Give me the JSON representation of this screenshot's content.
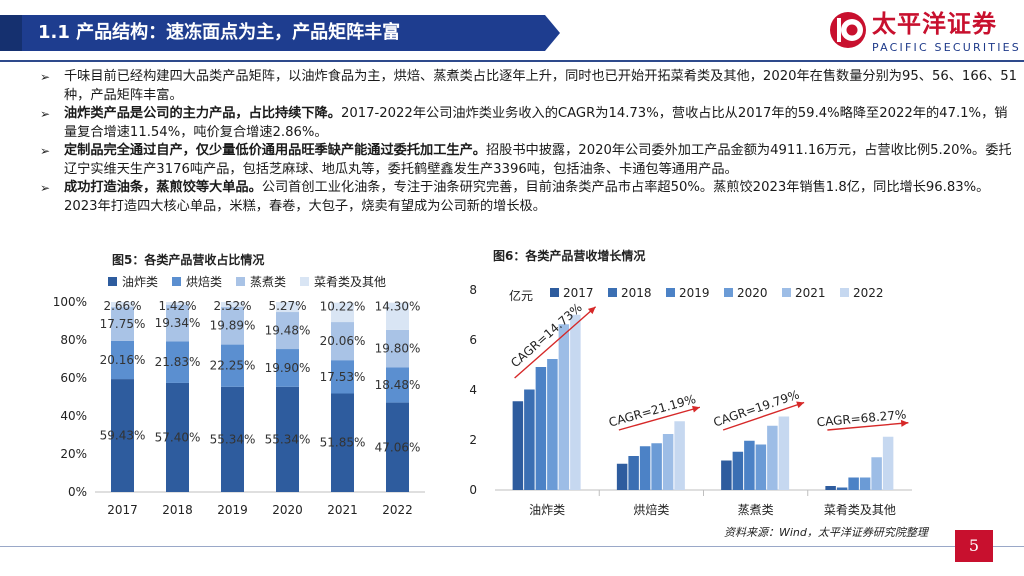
{
  "header": {
    "title": "1.1 产品结构：速冻面点为主，产品矩阵丰富",
    "logo_cn": "太平洋证券",
    "logo_en": "PACIFIC SECURITIES"
  },
  "bullets": [
    {
      "bold": "",
      "text": "千味目前已经构建四大品类产品矩阵，以油炸食品为主，烘焙、蒸煮类占比逐年上升，同时也已开始开拓菜肴类及其他，2020年在售数量分别为95、56、166、51种，产品矩阵丰富。"
    },
    {
      "bold": "油炸类产品是公司的主力产品，占比持续下降。",
      "text": "2017-2022年公司油炸类业务收入的CAGR为14.73%，营收占比从2017年的59.4%略降至2022年的47.1%，销量复合增速11.54%，吨价复合增速2.86%。"
    },
    {
      "bold": "定制品完全通过自产，仅少量低价通用品旺季缺产能通过委托加工生产。",
      "text": "招股书中披露，2020年公司委外加工产品金额为4911.16万元，占营收比例5.20%。委托辽宁实维天生产3176吨产品，包括芝麻球、地瓜丸等，委托鹤壁鑫发生产3396吨，包括油条、卡通包等通用产品。"
    },
    {
      "bold": "成功打造油条，蒸煎饺等大单品。",
      "text": "公司首创工业化油条，专注于油条研究完善，目前油条类产品市占率超50%。蒸煎饺2023年销售1.8亿，同比增长96.83%。2023年打造四大核心单品，米糕，春卷，大包子，烧卖有望成为公司新的增长极。"
    }
  ],
  "chart_data": [
    {
      "type": "bar",
      "stacked": true,
      "title": "图5：各类产品营收占比情况",
      "categories": [
        "2017",
        "2018",
        "2019",
        "2020",
        "2021",
        "2022"
      ],
      "series": [
        {
          "name": "油炸类",
          "color": "#2e5c9e",
          "values": [
            59.43,
            57.4,
            55.34,
            55.34,
            51.85,
            47.06
          ],
          "labels": [
            "59.43%",
            "57.40%",
            "55.34%",
            "55.34%",
            "51.85%",
            "47.06%"
          ]
        },
        {
          "name": "烘焙类",
          "color": "#5b8fd0",
          "values": [
            20.16,
            21.83,
            22.25,
            19.9,
            17.53,
            18.48
          ],
          "labels": [
            "20.16%",
            "21.83%",
            "22.25%",
            "19.90%",
            "17.53%",
            "18.48%"
          ]
        },
        {
          "name": "蒸煮类",
          "color": "#a9c3e6",
          "values": [
            17.75,
            19.34,
            19.89,
            19.48,
            20.06,
            19.8
          ],
          "labels": [
            "17.75%",
            "19.34%",
            "19.89%",
            "19.48%",
            "20.06%",
            "19.80%"
          ]
        },
        {
          "name": "菜肴类及其他",
          "color": "#d9e5f4",
          "values": [
            2.66,
            1.42,
            2.52,
            5.27,
            10.22,
            14.3
          ],
          "labels": [
            "2.66%",
            "1.42%",
            "2.52%",
            "5.27%",
            "10.22%",
            "14.30%"
          ]
        }
      ],
      "y_ticks": [
        "0%",
        "20%",
        "40%",
        "60%",
        "80%",
        "100%"
      ],
      "ylim": [
        0,
        100
      ]
    },
    {
      "type": "bar",
      "title": "图6：各类产品营收增长情况",
      "ylabel": "亿元",
      "categories": [
        "油炸类",
        "烘焙类",
        "蒸煮类",
        "菜肴类及其他"
      ],
      "series": [
        {
          "name": "2017",
          "color": "#2e5c9e",
          "values": [
            3.55,
            1.05,
            1.18,
            0.16
          ]
        },
        {
          "name": "2018",
          "color": "#3b6fb3",
          "values": [
            4.02,
            1.36,
            1.53,
            0.1
          ]
        },
        {
          "name": "2019",
          "color": "#4c82c6",
          "values": [
            4.92,
            1.75,
            1.97,
            0.5
          ]
        },
        {
          "name": "2020",
          "color": "#6b9bd6",
          "values": [
            5.24,
            1.87,
            1.82,
            0.5
          ]
        },
        {
          "name": "2021",
          "color": "#9dbde6",
          "values": [
            6.63,
            2.24,
            2.57,
            1.31
          ]
        },
        {
          "name": "2022",
          "color": "#c6d8f0",
          "values": [
            7.01,
            2.75,
            2.94,
            2.13
          ]
        }
      ],
      "annotations": [
        "CAGR=14.73%",
        "CAGR=21.19%",
        "CAGR=19.79%",
        "CAGR=68.27%"
      ],
      "y_ticks": [
        "0",
        "2",
        "4",
        "6",
        "8"
      ],
      "ylim": [
        0,
        8
      ]
    }
  ],
  "footer": {
    "source": "资料来源：Wind，太平洋证券研究院整理",
    "page": "5"
  },
  "colors": {
    "brand_red": "#c8102e",
    "brand_blue": "#1e3a8a"
  }
}
